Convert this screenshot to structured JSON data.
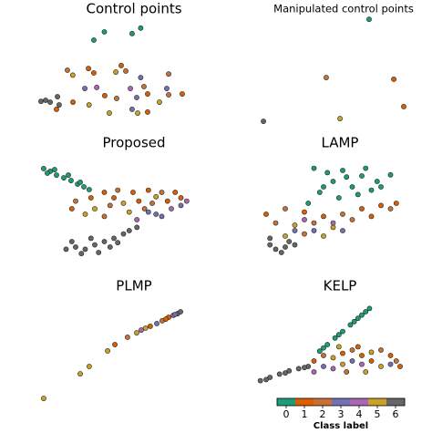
{
  "chart_data": [
    {
      "type": "scatter",
      "title": "Control points",
      "xlim": [
        0,
        100
      ],
      "ylim": [
        0,
        100
      ],
      "x": [
        39.5,
        45,
        59.5,
        64,
        36.7,
        25.7,
        28.5,
        39.5,
        53.8,
        56.2,
        51,
        78.6,
        64,
        34.8,
        41,
        14.3,
        11.9,
        16.7,
        20.5,
        21.4,
        20,
        28.6,
        37,
        45.2,
        51.4,
        58.6,
        61.9,
        65.7,
        67.6,
        78.6,
        85.7,
        73.8,
        47.6,
        59.5,
        62.4,
        67.6,
        77.6
      ],
      "y": [
        80,
        87.5,
        86,
        91,
        54,
        52.5,
        48,
        50,
        56.7,
        51.7,
        50.8,
        49,
        45.8,
        35.8,
        36.7,
        25,
        24,
        23.3,
        28.3,
        20.8,
        16.7,
        23.3,
        20.8,
        29.2,
        26.7,
        35.8,
        27.5,
        37.5,
        30.8,
        30,
        30.8,
        23.3,
        13.3,
        16.7,
        13.3,
        14.2,
        35.8
      ],
      "class": [
        0,
        0,
        0,
        0,
        1,
        2,
        5,
        1,
        1,
        2,
        5,
        2,
        3,
        3,
        4,
        6,
        6,
        6,
        6,
        6,
        1,
        1,
        5,
        1,
        2,
        4,
        3,
        2,
        1,
        2,
        1,
        5,
        5,
        3,
        5,
        1,
        3
      ]
    },
    {
      "type": "scatter",
      "title": "Manipulated control points",
      "xlim": [
        0,
        100
      ],
      "ylim": [
        0,
        100
      ],
      "x": [
        73.8,
        51.4,
        86.7,
        91.9,
        58.6,
        18.6
      ],
      "y": [
        99,
        45.8,
        44.2,
        19.2,
        8.3,
        5.8
      ],
      "class": [
        0,
        2,
        1,
        1,
        5,
        6
      ]
    },
    {
      "type": "scatter",
      "title": "Proposed",
      "xlim": [
        0,
        100
      ],
      "ylim": [
        0,
        100
      ],
      "x": [
        13.3,
        16.7,
        20,
        23.8,
        27.6,
        31,
        34.3,
        19,
        26.2,
        32.4,
        37.1,
        15.2,
        30,
        38,
        45,
        52,
        60,
        68,
        75,
        82,
        40,
        48,
        55,
        63,
        70,
        78,
        35,
        45,
        58,
        66,
        85,
        28,
        50,
        72,
        72,
        80,
        85,
        62,
        75,
        88,
        68,
        30,
        35,
        40,
        45,
        50,
        55,
        38,
        28,
        33,
        48,
        58,
        42,
        25,
        52,
        62
      ],
      "y": [
        91.7,
        89.2,
        85.8,
        83.3,
        80.8,
        77.5,
        75,
        90.8,
        85.8,
        79.2,
        72.5,
        87.5,
        62,
        65,
        70,
        72,
        70,
        72,
        70,
        70,
        55,
        58,
        60,
        62,
        60,
        62,
        50,
        48,
        52,
        55,
        65,
        55,
        65,
        66,
        50,
        55,
        58,
        45,
        48,
        62,
        52,
        20,
        18,
        22,
        25,
        28,
        32,
        28,
        25,
        14,
        20,
        35,
        15,
        18,
        24,
        38
      ],
      "class": [
        0,
        0,
        0,
        0,
        0,
        0,
        0,
        0,
        0,
        0,
        0,
        0,
        2,
        1,
        1,
        2,
        1,
        1,
        2,
        1,
        5,
        2,
        5,
        1,
        2,
        1,
        5,
        2,
        5,
        2,
        1,
        1,
        1,
        5,
        3,
        4,
        3,
        4,
        3,
        4,
        3,
        6,
        6,
        6,
        6,
        6,
        6,
        6,
        6,
        6,
        6,
        6,
        6,
        6,
        6,
        6
      ]
    },
    {
      "type": "scatter",
      "title": "LAMP",
      "xlim": [
        0,
        100
      ],
      "ylim": [
        0,
        100
      ],
      "x": [
        45,
        52,
        60,
        70,
        78,
        85,
        55,
        65,
        75,
        48,
        58,
        68,
        80,
        42,
        62,
        72,
        50,
        20,
        30,
        40,
        50,
        60,
        70,
        80,
        88,
        25,
        35,
        45,
        55,
        65,
        75,
        30,
        40,
        50,
        85,
        45,
        55,
        60,
        40,
        35,
        22,
        25,
        30,
        28,
        35,
        22,
        32
      ],
      "y": [
        92,
        88,
        90,
        85,
        80,
        86,
        80,
        75,
        72,
        70,
        65,
        68,
        75,
        60,
        84,
        92,
        75,
        50,
        55,
        52,
        48,
        50,
        55,
        58,
        60,
        42,
        40,
        42,
        38,
        45,
        48,
        30,
        32,
        30,
        55,
        35,
        42,
        35,
        45,
        35,
        22,
        18,
        20,
        15,
        22,
        28,
        25
      ],
      "class": [
        0,
        0,
        0,
        0,
        0,
        0,
        0,
        0,
        0,
        0,
        0,
        0,
        0,
        0,
        0,
        0,
        0,
        1,
        2,
        1,
        1,
        2,
        1,
        1,
        1,
        2,
        5,
        2,
        5,
        2,
        1,
        5,
        2,
        5,
        2,
        3,
        4,
        3,
        4,
        3,
        6,
        6,
        6,
        6,
        6,
        6,
        6
      ]
    },
    {
      "type": "scatter",
      "title": "PLMP",
      "xlim": [
        0,
        100
      ],
      "ylim": [
        0,
        100
      ],
      "x": [
        13.3,
        32.4,
        37.1,
        46.7,
        50.5,
        57.1,
        61.9,
        64.3,
        69,
        72.4,
        75.2,
        78.6,
        81,
        83.3,
        84.8,
        81.9,
        77.1,
        66.5
      ],
      "y": [
        10.8,
        33.3,
        40,
        54.2,
        60,
        66.7,
        70.8,
        73.3,
        76.7,
        79.2,
        81.7,
        85,
        86.7,
        88.3,
        90,
        87.5,
        83.3,
        75
      ],
      "class": [
        5,
        5,
        5,
        5,
        1,
        2,
        5,
        4,
        1,
        3,
        2,
        1,
        4,
        6,
        6,
        3,
        1,
        5
      ]
    },
    {
      "type": "scatter",
      "title": "KELP",
      "xlim": [
        0,
        100
      ],
      "ylim": [
        0,
        100
      ],
      "x": [
        48,
        52,
        56,
        60,
        64,
        68,
        72,
        74,
        50,
        58,
        66,
        70,
        17,
        22,
        27,
        32,
        37,
        42,
        20,
        30,
        40,
        45,
        50,
        55,
        60,
        65,
        70,
        75,
        80,
        85,
        88,
        50,
        55,
        60,
        65,
        70,
        75,
        80,
        85,
        45,
        62,
        72,
        90,
        68,
        58
      ],
      "y": [
        54,
        60,
        66,
        72,
        78,
        84,
        90,
        93,
        57,
        69,
        81,
        87,
        27,
        30,
        33,
        36,
        38,
        40,
        28,
        34,
        39,
        45,
        50,
        48,
        52,
        55,
        50,
        53,
        55,
        50,
        45,
        40,
        38,
        42,
        45,
        42,
        45,
        40,
        42,
        35,
        35,
        35,
        40,
        58,
        58
      ],
      "class": [
        0,
        0,
        0,
        0,
        0,
        0,
        0,
        0,
        0,
        0,
        0,
        0,
        6,
        6,
        6,
        6,
        6,
        6,
        6,
        6,
        6,
        1,
        2,
        5,
        1,
        2,
        1,
        5,
        2,
        1,
        2,
        3,
        4,
        5,
        3,
        4,
        1,
        5,
        3,
        4,
        2,
        5,
        1,
        1,
        5
      ]
    },
    {
      "type": "colorbar",
      "label": "Class label",
      "ticks": [
        0,
        1,
        2,
        3,
        4,
        5,
        6
      ],
      "colors": [
        "#1b9e77",
        "#d95f02",
        "#c87137",
        "#7570b3",
        "#a966b5",
        "#c9a227",
        "#666666"
      ]
    }
  ]
}
